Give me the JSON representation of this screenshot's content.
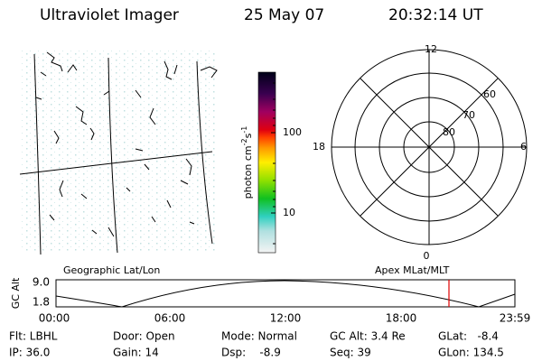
{
  "header": {
    "instrument": "Ultraviolet Imager",
    "date": "25 May 07",
    "time": "20:32:14 UT"
  },
  "colorbar": {
    "ticks": [
      "100",
      "10"
    ],
    "label": {
      "base": "photon cm",
      "exp1": "-2",
      "unit2": "s",
      "exp2": "-1"
    }
  },
  "polar": {
    "mlt_labels": [
      "12",
      "6",
      "0",
      "18"
    ],
    "lat_labels": [
      "60",
      "70",
      "80"
    ]
  },
  "orbit": {
    "left_label": "Geographic Lat/Lon",
    "right_label": "Apex MLat/MLT",
    "axis_label": "GC Alt",
    "y_labels": [
      "9.0",
      "1.8"
    ],
    "x_labels": [
      "00:00",
      "06:00",
      "12:00",
      "18:00",
      "23:59"
    ]
  },
  "info": {
    "rows": [
      [
        "Flt: LBHL",
        "Door: Open",
        "Mode: Normal",
        "GC Alt: 3.4 Re",
        "GLat:   -8.4"
      ],
      [
        "IP: 36.0",
        "Gain: 14",
        "Dsp:    -8.9",
        "Seq: 39",
        "GLon: 134.5"
      ]
    ]
  }
}
